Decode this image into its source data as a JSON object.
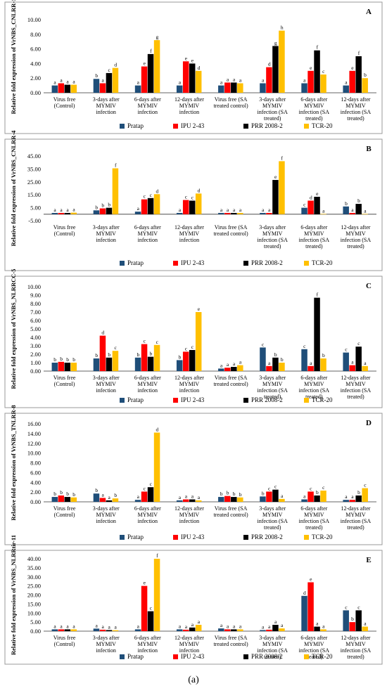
{
  "figure_label": "(a)",
  "colors": {
    "Pratap": "#1f4e79",
    "IPU 2-43": "#ff0000",
    "PRR 2008-2": "#000000",
    "TCR-20": "#ffc000"
  },
  "chart_data": [
    {
      "type": "bar",
      "panel": "A",
      "ylabel": "Relative fold expression of VrNBS_CNLRR-1",
      "ylim": [
        0,
        10
      ],
      "yticks": [
        "0.00",
        "2.00",
        "4.00",
        "6.00",
        "8.00",
        "10.00"
      ],
      "categories": [
        [
          "Virus free",
          "(Control)"
        ],
        [
          "3-days after",
          "MYMIV",
          "infection"
        ],
        [
          "6-days after",
          "MYMIV",
          "infection"
        ],
        [
          "12-days after",
          "MYMIV",
          "infection"
        ],
        [
          "Virus free (SA",
          "treated control)"
        ],
        [
          "3-days after",
          "MYMIV",
          "infection (SA",
          "treated)"
        ],
        [
          "6-days after",
          "MYMIV",
          "infection (SA",
          "treated)"
        ],
        [
          "12-days after",
          "MYMIV",
          "infection (SA",
          "treated)"
        ]
      ],
      "series": [
        {
          "name": "Pratap",
          "values": [
            1.0,
            1.9,
            1.0,
            1.0,
            1.0,
            1.3,
            1.3,
            1.0
          ],
          "labels": [
            "a",
            "b",
            "a",
            "a",
            "a",
            "a",
            "a",
            "a"
          ]
        },
        {
          "name": "IPU 2-43",
          "values": [
            1.3,
            1.3,
            3.6,
            4.3,
            1.4,
            3.5,
            3.0,
            3.0
          ],
          "labels": [
            "a",
            "a",
            "e",
            "e",
            "a",
            "d",
            "e",
            "e"
          ]
        },
        {
          "name": "PRR 2008-2",
          "values": [
            1.1,
            2.7,
            5.3,
            4.0,
            1.4,
            6.4,
            5.8,
            5.0
          ],
          "labels": [
            "a",
            "c",
            "f",
            "e",
            "a",
            "g",
            "f",
            "f"
          ]
        },
        {
          "name": "TCR-20",
          "values": [
            1.1,
            3.4,
            7.2,
            3.0,
            1.3,
            8.5,
            2.5,
            2.0
          ],
          "labels": [
            "a",
            "d",
            "g",
            "d",
            "a",
            "h",
            "c",
            "b"
          ]
        }
      ]
    },
    {
      "type": "bar",
      "panel": "B",
      "ylabel": "Relative fold expression of VrNBS_CNLRR-4",
      "ylim": [
        -5,
        45
      ],
      "yticks": [
        "-5.00",
        "5.00",
        "15.00",
        "25.00",
        "35.00",
        "45.00"
      ],
      "categories": [
        [
          "Virus free",
          "(Control)"
        ],
        [
          "3-days after",
          "MYMIV",
          "infection"
        ],
        [
          "6-days after",
          "MYMIV",
          "infection"
        ],
        [
          "12-days after",
          "MYMIV",
          "infection"
        ],
        [
          "Virus free (SA",
          "treated control)"
        ],
        [
          "3-days after",
          "MYMIV",
          "infection (SA",
          "treated)"
        ],
        [
          "6-days after",
          "MYMIV",
          "infection (SA",
          "treated)"
        ],
        [
          "12-days after",
          "MYMIV",
          "infection (SA",
          "treated)"
        ]
      ],
      "series": [
        {
          "name": "Pratap",
          "values": [
            1.0,
            3.0,
            2.0,
            1.0,
            1.0,
            1.0,
            5.0,
            6.0
          ],
          "labels": [
            "a",
            "b",
            "a",
            "a",
            "a",
            "a",
            "c",
            "b"
          ]
        },
        {
          "name": "IPU 2-43",
          "values": [
            1.0,
            4.5,
            11.5,
            11.0,
            1.0,
            1.0,
            10.5,
            1.0
          ],
          "labels": [
            "a",
            "b",
            "c",
            "c",
            "a",
            "a",
            "d",
            "a"
          ]
        },
        {
          "name": "PRR 2008-2",
          "values": [
            1.0,
            5.0,
            12.5,
            10.5,
            1.0,
            26.5,
            13.5,
            8.0
          ],
          "labels": [
            "a",
            "b",
            "c",
            "c",
            "a",
            "e",
            "e",
            "b"
          ]
        },
        {
          "name": "TCR-20",
          "values": [
            1.2,
            35.5,
            15.5,
            16.0,
            1.0,
            41.0,
            0.2,
            0.2
          ],
          "labels": [
            "a",
            "f",
            "d",
            "d",
            "a",
            "f",
            "a",
            "a"
          ]
        }
      ]
    },
    {
      "type": "bar",
      "panel": "C",
      "ylabel": "Relative fold expression of VrNBS_NLRRCC-5",
      "ylim": [
        0,
        10
      ],
      "yticks": [
        "0.00",
        "1.00",
        "2.00",
        "3.00",
        "4.00",
        "5.00",
        "6.00",
        "7.00",
        "8.00",
        "9.00",
        "10.00"
      ],
      "categories": [
        [
          "Virus free",
          "(Control)"
        ],
        [
          "3-days after",
          "MYMIV",
          "infection"
        ],
        [
          "6-days after",
          "MYMIV",
          "infection"
        ],
        [
          "12-days after",
          "MYMIV",
          "infection"
        ],
        [
          "Virus free (SA",
          "treated control)"
        ],
        [
          "3-days after",
          "MYMIV",
          "infection (SA",
          "treated)"
        ],
        [
          "6-days after",
          "MYMIV",
          "infection (SA",
          "treated)"
        ],
        [
          "12-days after",
          "MYMIV",
          "infection (SA",
          "treated)"
        ]
      ],
      "series": [
        {
          "name": "Pratap",
          "values": [
            1.0,
            1.5,
            1.6,
            1.3,
            0.3,
            2.8,
            2.6,
            2.2
          ],
          "labels": [
            "b",
            "b",
            "b",
            "b",
            "a",
            "c",
            "c",
            "c"
          ]
        },
        {
          "name": "IPU 2-43",
          "values": [
            1.1,
            4.2,
            3.2,
            2.3,
            0.4,
            0.6,
            0.6,
            0.7
          ],
          "labels": [
            "b",
            "d",
            "c",
            "c",
            "a",
            "a",
            "a",
            "a"
          ]
        },
        {
          "name": "PRR 2008-2",
          "values": [
            1.0,
            1.6,
            1.7,
            2.5,
            0.5,
            1.6,
            8.7,
            2.9
          ],
          "labels": [
            "b",
            "b",
            "b",
            "c",
            "a",
            "b",
            "f",
            "c"
          ]
        },
        {
          "name": "TCR-20",
          "values": [
            1.0,
            2.4,
            3.1,
            7.0,
            0.7,
            1.0,
            1.5,
            0.6
          ],
          "labels": [
            "b",
            "c",
            "c",
            "e",
            "a",
            "b",
            "b",
            "a"
          ]
        }
      ]
    },
    {
      "type": "bar",
      "panel": "D",
      "ylabel": "Relative fold expression of VrNBS_TNLRR-8",
      "ylim": [
        0,
        16
      ],
      "yticks": [
        "0.00",
        "2.00",
        "4.00",
        "6.00",
        "8.00",
        "10.00",
        "12.00",
        "14.00",
        "16.00"
      ],
      "categories": [
        [
          "Virus free",
          "(Control)"
        ],
        [
          "3-days after",
          "MYMIV",
          "infection"
        ],
        [
          "6-days after",
          "MYMIV",
          "infection"
        ],
        [
          "12-days after",
          "MYMIV",
          "infection"
        ],
        [
          "Virus free (SA",
          "treated control)"
        ],
        [
          "3-days after",
          "MYMIV",
          "infection (SA",
          "treated)"
        ],
        [
          "6-days after",
          "MYMIV",
          "infection (SA",
          "treated)"
        ],
        [
          "12-days after",
          "MYMIV",
          "infection (SA",
          "treated)"
        ]
      ],
      "series": [
        {
          "name": "Pratap",
          "values": [
            1.0,
            1.7,
            0.4,
            0.3,
            1.0,
            1.1,
            0.5,
            0.4
          ],
          "labels": [
            "b",
            "b",
            "a",
            "a",
            "b",
            "b",
            "a",
            "a"
          ]
        },
        {
          "name": "IPU 2-43",
          "values": [
            1.3,
            0.8,
            2.1,
            0.5,
            1.2,
            2.1,
            2.1,
            0.4
          ],
          "labels": [
            "b",
            "a",
            "c",
            "a",
            "b",
            "c",
            "c",
            "a"
          ]
        },
        {
          "name": "PRR 2008-2",
          "values": [
            1.0,
            0.3,
            3.0,
            0.5,
            1.0,
            2.5,
            1.3,
            1.3
          ],
          "labels": [
            "b",
            "a",
            "c",
            "a",
            "b",
            "c",
            "b",
            "b"
          ]
        },
        {
          "name": "TCR-20",
          "values": [
            0.9,
            0.7,
            14.2,
            0.3,
            0.9,
            0.6,
            2.3,
            2.8
          ],
          "labels": [
            "b",
            "b",
            "d",
            "a",
            "b",
            "a",
            "c",
            "c"
          ]
        }
      ]
    },
    {
      "type": "bar",
      "panel": "E",
      "ylabel": "Relative fold expression of VrNBS_NLRRtir-11",
      "ylim": [
        0,
        40
      ],
      "yticks": [
        "0.00",
        "5.00",
        "10.00",
        "15.00",
        "20.00",
        "25.00",
        "30.00",
        "35.00",
        "40.00"
      ],
      "categories": [
        [
          "Virus free",
          "(Control)"
        ],
        [
          "3-days after",
          "MYMIV",
          "infection"
        ],
        [
          "6-days after",
          "MYMIV",
          "infection"
        ],
        [
          "12-days after",
          "MYMIV",
          "infection"
        ],
        [
          "Virus free (SA",
          "treated control)"
        ],
        [
          "3-days after",
          "MYMIV",
          "infection (SA",
          "treated)"
        ],
        [
          "6-days after",
          "MYMIV",
          "infection (SA",
          "treated)"
        ],
        [
          "12-days after",
          "MYMIV",
          "infection (SA",
          "treated)"
        ]
      ],
      "series": [
        {
          "name": "Pratap",
          "values": [
            1.0,
            1.4,
            1.0,
            1.0,
            1.5,
            0.6,
            19.5,
            11.5
          ],
          "labels": [
            "a",
            "a",
            "a",
            "a",
            "a",
            "a",
            "d",
            "c"
          ]
        },
        {
          "name": "IPU 2-43",
          "values": [
            1.0,
            0.8,
            25.0,
            0.8,
            1.0,
            0.8,
            27.0,
            5.0
          ],
          "labels": [
            "a",
            "a",
            "e",
            "a",
            "a",
            "a",
            "e",
            "b"
          ]
        },
        {
          "name": "PRR 2008-2",
          "values": [
            1.0,
            0.6,
            11.0,
            2.0,
            1.0,
            3.5,
            2.5,
            11.5
          ],
          "labels": [
            "a",
            "a",
            "c",
            "a",
            "a",
            "a",
            "a",
            "c"
          ]
        },
        {
          "name": "TCR-20",
          "values": [
            1.0,
            0.5,
            40.0,
            3.5,
            1.0,
            1.5,
            1.0,
            2.5
          ],
          "labels": [
            "a",
            "a",
            "f",
            "a",
            "a",
            "a",
            "a",
            "a"
          ]
        }
      ]
    }
  ]
}
